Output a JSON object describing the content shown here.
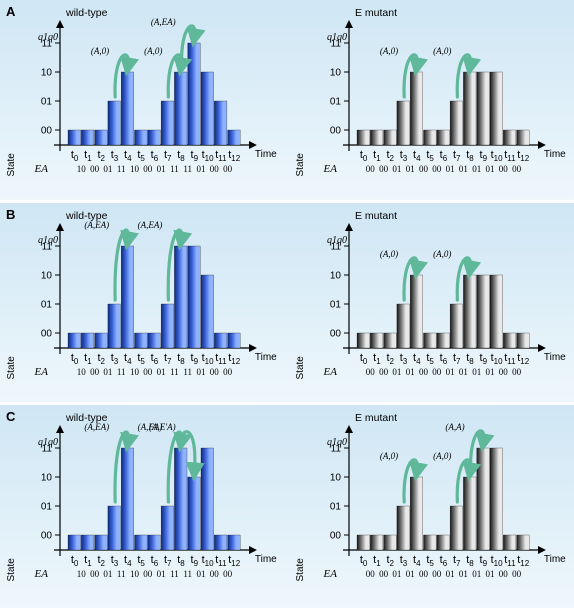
{
  "panels": [
    {
      "label": "A",
      "charts": [
        {
          "title": "wild-type",
          "style": "blue",
          "y_axis_title": "State",
          "y_axis_top": "q1q0",
          "x_axis_title": "Time",
          "ea_label": "EA",
          "chart_data": {
            "type": "bar",
            "categories": [
              "t0",
              "t1",
              "t2",
              "t3",
              "t4",
              "t5",
              "t6",
              "t7",
              "t8",
              "t9",
              "t10",
              "t11",
              "t12"
            ],
            "y_ticks": [
              "00",
              "01",
              "10",
              "11"
            ],
            "values": [
              0,
              0,
              0,
              1,
              2,
              0,
              0,
              1,
              2,
              3,
              2,
              1,
              0
            ],
            "ea_values": [
              "10",
              "00",
              "01",
              "11",
              "10",
              "00",
              "01",
              "11",
              "11",
              "01",
              "00",
              "00"
            ],
            "annotations": [
              {
                "label": "(A,0)",
                "from": 3,
                "to": 4
              },
              {
                "label": "(A,0)",
                "from": 7,
                "to": 8
              },
              {
                "label": "(A,EA)",
                "from": 8,
                "to": 9
              }
            ]
          }
        },
        {
          "title": "E mutant",
          "style": "gray",
          "y_axis_title": "State",
          "y_axis_top": "q1q0",
          "x_axis_title": "Time",
          "ea_label": "EA",
          "chart_data": {
            "type": "bar",
            "categories": [
              "t0",
              "t1",
              "t2",
              "t3",
              "t4",
              "t5",
              "t6",
              "t7",
              "t8",
              "t9",
              "t10",
              "t11",
              "t12"
            ],
            "y_ticks": [
              "00",
              "01",
              "10",
              "11"
            ],
            "values": [
              0,
              0,
              0,
              1,
              2,
              0,
              0,
              1,
              2,
              2,
              2,
              0,
              0
            ],
            "ea_values": [
              "00",
              "00",
              "01",
              "01",
              "00",
              "00",
              "01",
              "01",
              "01",
              "01",
              "00",
              "00"
            ],
            "annotations": [
              {
                "label": "(A,0)",
                "from": 3,
                "to": 4
              },
              {
                "label": "(A,0)",
                "from": 7,
                "to": 8
              }
            ]
          }
        }
      ]
    },
    {
      "label": "B",
      "charts": [
        {
          "title": "wild-type",
          "style": "blue",
          "y_axis_title": "State",
          "y_axis_top": "q1q0",
          "x_axis_title": "Time",
          "ea_label": "EA",
          "chart_data": {
            "type": "bar",
            "categories": [
              "t0",
              "t1",
              "t2",
              "t3",
              "t4",
              "t5",
              "t6",
              "t7",
              "t8",
              "t9",
              "t10",
              "t11",
              "t12"
            ],
            "y_ticks": [
              "00",
              "01",
              "10",
              "11"
            ],
            "values": [
              0,
              0,
              0,
              1,
              3,
              0,
              0,
              1,
              3,
              3,
              2,
              0,
              0
            ],
            "ea_values": [
              "10",
              "00",
              "01",
              "11",
              "10",
              "00",
              "01",
              "11",
              "11",
              "01",
              "00",
              "00"
            ],
            "annotations": [
              {
                "label": "(A,EA)",
                "from": 3,
                "to": 4
              },
              {
                "label": "(A,EA)",
                "from": 7,
                "to": 8
              }
            ]
          }
        },
        {
          "title": "E mutant",
          "style": "gray",
          "y_axis_title": "State",
          "y_axis_top": "q1q0",
          "x_axis_title": "Time",
          "ea_label": "EA",
          "chart_data": {
            "type": "bar",
            "categories": [
              "t0",
              "t1",
              "t2",
              "t3",
              "t4",
              "t5",
              "t6",
              "t7",
              "t8",
              "t9",
              "t10",
              "t11",
              "t12"
            ],
            "y_ticks": [
              "00",
              "01",
              "10",
              "11"
            ],
            "values": [
              0,
              0,
              0,
              1,
              2,
              0,
              0,
              1,
              2,
              2,
              2,
              0,
              0
            ],
            "ea_values": [
              "00",
              "00",
              "01",
              "01",
              "00",
              "00",
              "01",
              "01",
              "01",
              "01",
              "00",
              "00"
            ],
            "annotations": [
              {
                "label": "(A,0)",
                "from": 3,
                "to": 4
              },
              {
                "label": "(A,0)",
                "from": 7,
                "to": 8
              }
            ]
          }
        }
      ]
    },
    {
      "label": "C",
      "charts": [
        {
          "title": "wild-type",
          "style": "blue",
          "y_axis_title": "State",
          "y_axis_top": "q1q0",
          "x_axis_title": "Time",
          "ea_label": "EA",
          "chart_data": {
            "type": "bar",
            "categories": [
              "t0",
              "t1",
              "t2",
              "t3",
              "t4",
              "t5",
              "t6",
              "t7",
              "t8",
              "t9",
              "t10",
              "t11",
              "t12"
            ],
            "y_ticks": [
              "00",
              "01",
              "10",
              "11"
            ],
            "values": [
              0,
              0,
              0,
              1,
              3,
              0,
              0,
              1,
              3,
              2,
              3,
              0,
              0
            ],
            "ea_values": [
              "10",
              "00",
              "01",
              "11",
              "10",
              "00",
              "01",
              "11",
              "11",
              "01",
              "00",
              "00"
            ],
            "annotations": [
              {
                "label": "(A,EA)",
                "from": 3,
                "to": 4
              },
              {
                "label": "(A,EA)",
                "from": 7,
                "to": 8
              },
              {
                "label": "(A,E'A)",
                "from": 8,
                "to": 9
              }
            ]
          }
        },
        {
          "title": "E mutant",
          "style": "gray",
          "y_axis_title": "State",
          "y_axis_top": "q1q0",
          "x_axis_title": "Time",
          "ea_label": "EA",
          "chart_data": {
            "type": "bar",
            "categories": [
              "t0",
              "t1",
              "t2",
              "t3",
              "t4",
              "t5",
              "t6",
              "t7",
              "t8",
              "t9",
              "t10",
              "t11",
              "t12"
            ],
            "y_ticks": [
              "00",
              "01",
              "10",
              "11"
            ],
            "values": [
              0,
              0,
              0,
              1,
              2,
              0,
              0,
              1,
              2,
              3,
              3,
              0,
              0
            ],
            "ea_values": [
              "00",
              "00",
              "01",
              "01",
              "00",
              "00",
              "01",
              "01",
              "01",
              "01",
              "00",
              "00"
            ],
            "annotations": [
              {
                "label": "(A,0)",
                "from": 3,
                "to": 4
              },
              {
                "label": "(A,0)",
                "from": 7,
                "to": 8
              },
              {
                "label": "(A,A)",
                "from": 8,
                "to": 9
              }
            ]
          }
        }
      ]
    }
  ],
  "colors": {
    "band_top": "#cfe6f4",
    "band_bottom": "#eef7fc",
    "separator": "#ffffff",
    "blue_dark": "#0d2a7a",
    "blue_mid": "#3b63d8",
    "blue_light": "#8fb2ff",
    "gray_dark": "#151515",
    "gray_mid": "#7a7a7a",
    "gray_light": "#e8e8e8",
    "arrow": "#5fb89a",
    "axis": "#000000"
  }
}
